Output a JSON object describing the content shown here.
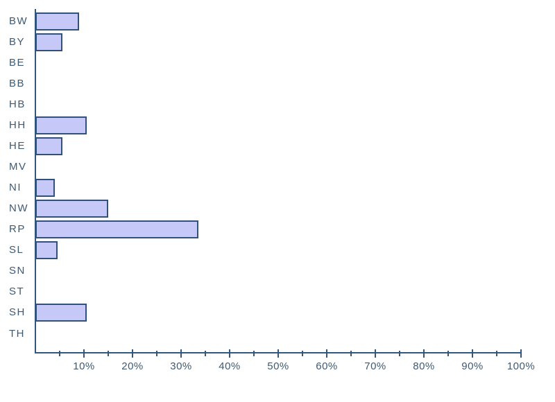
{
  "page": {
    "background": "#ffffff"
  },
  "chart_data": {
    "type": "bar",
    "orientation": "horizontal",
    "title": "",
    "subtitle": "",
    "xlabel": "",
    "ylabel": "",
    "categories": [
      "BW",
      "BY",
      "BE",
      "BB",
      "HB",
      "HH",
      "HE",
      "MV",
      "NI",
      "NW",
      "RP",
      "SL",
      "SN",
      "ST",
      "SH",
      "TH"
    ],
    "values": [
      9,
      5.5,
      0,
      0,
      0,
      10.5,
      5.5,
      0,
      4,
      15,
      33.5,
      4.5,
      0,
      0,
      10.5,
      0
    ],
    "xlim": [
      0,
      100
    ],
    "x_unit": "%",
    "x_major_ticks": [
      10,
      20,
      30,
      40,
      50,
      60,
      70,
      80,
      90,
      100
    ],
    "x_tick_labels": [
      "10%",
      "20%",
      "30%",
      "40%",
      "50%",
      "60%",
      "70%",
      "80%",
      "90%",
      "100%"
    ],
    "x_minor_ticks": [
      5,
      15,
      25,
      35,
      45,
      55,
      65,
      75,
      85,
      95
    ],
    "grid": false,
    "legend": false,
    "colors": {
      "bar_fill": "#c6c8f7",
      "bar_border": "#31517b",
      "axis": "#33567d",
      "text": "#3d5a73",
      "background": "#ffffff"
    }
  }
}
